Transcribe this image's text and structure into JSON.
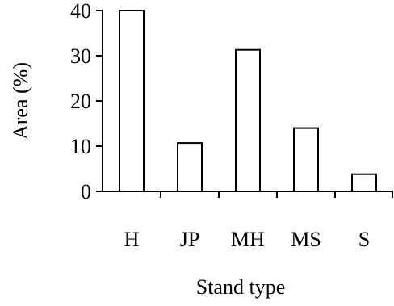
{
  "chart_data": {
    "type": "bar",
    "categories": [
      "H",
      "JP",
      "MH",
      "MS",
      "S"
    ],
    "values": [
      40,
      10.7,
      31.3,
      14,
      3.8
    ],
    "xlabel": "Stand type",
    "ylabel": "Area (%)",
    "ylim": [
      0,
      40
    ],
    "yticks": [
      0,
      10,
      20,
      30,
      40
    ],
    "grid": false,
    "bar_fill": "#ffffff",
    "bar_stroke": "#000000"
  }
}
